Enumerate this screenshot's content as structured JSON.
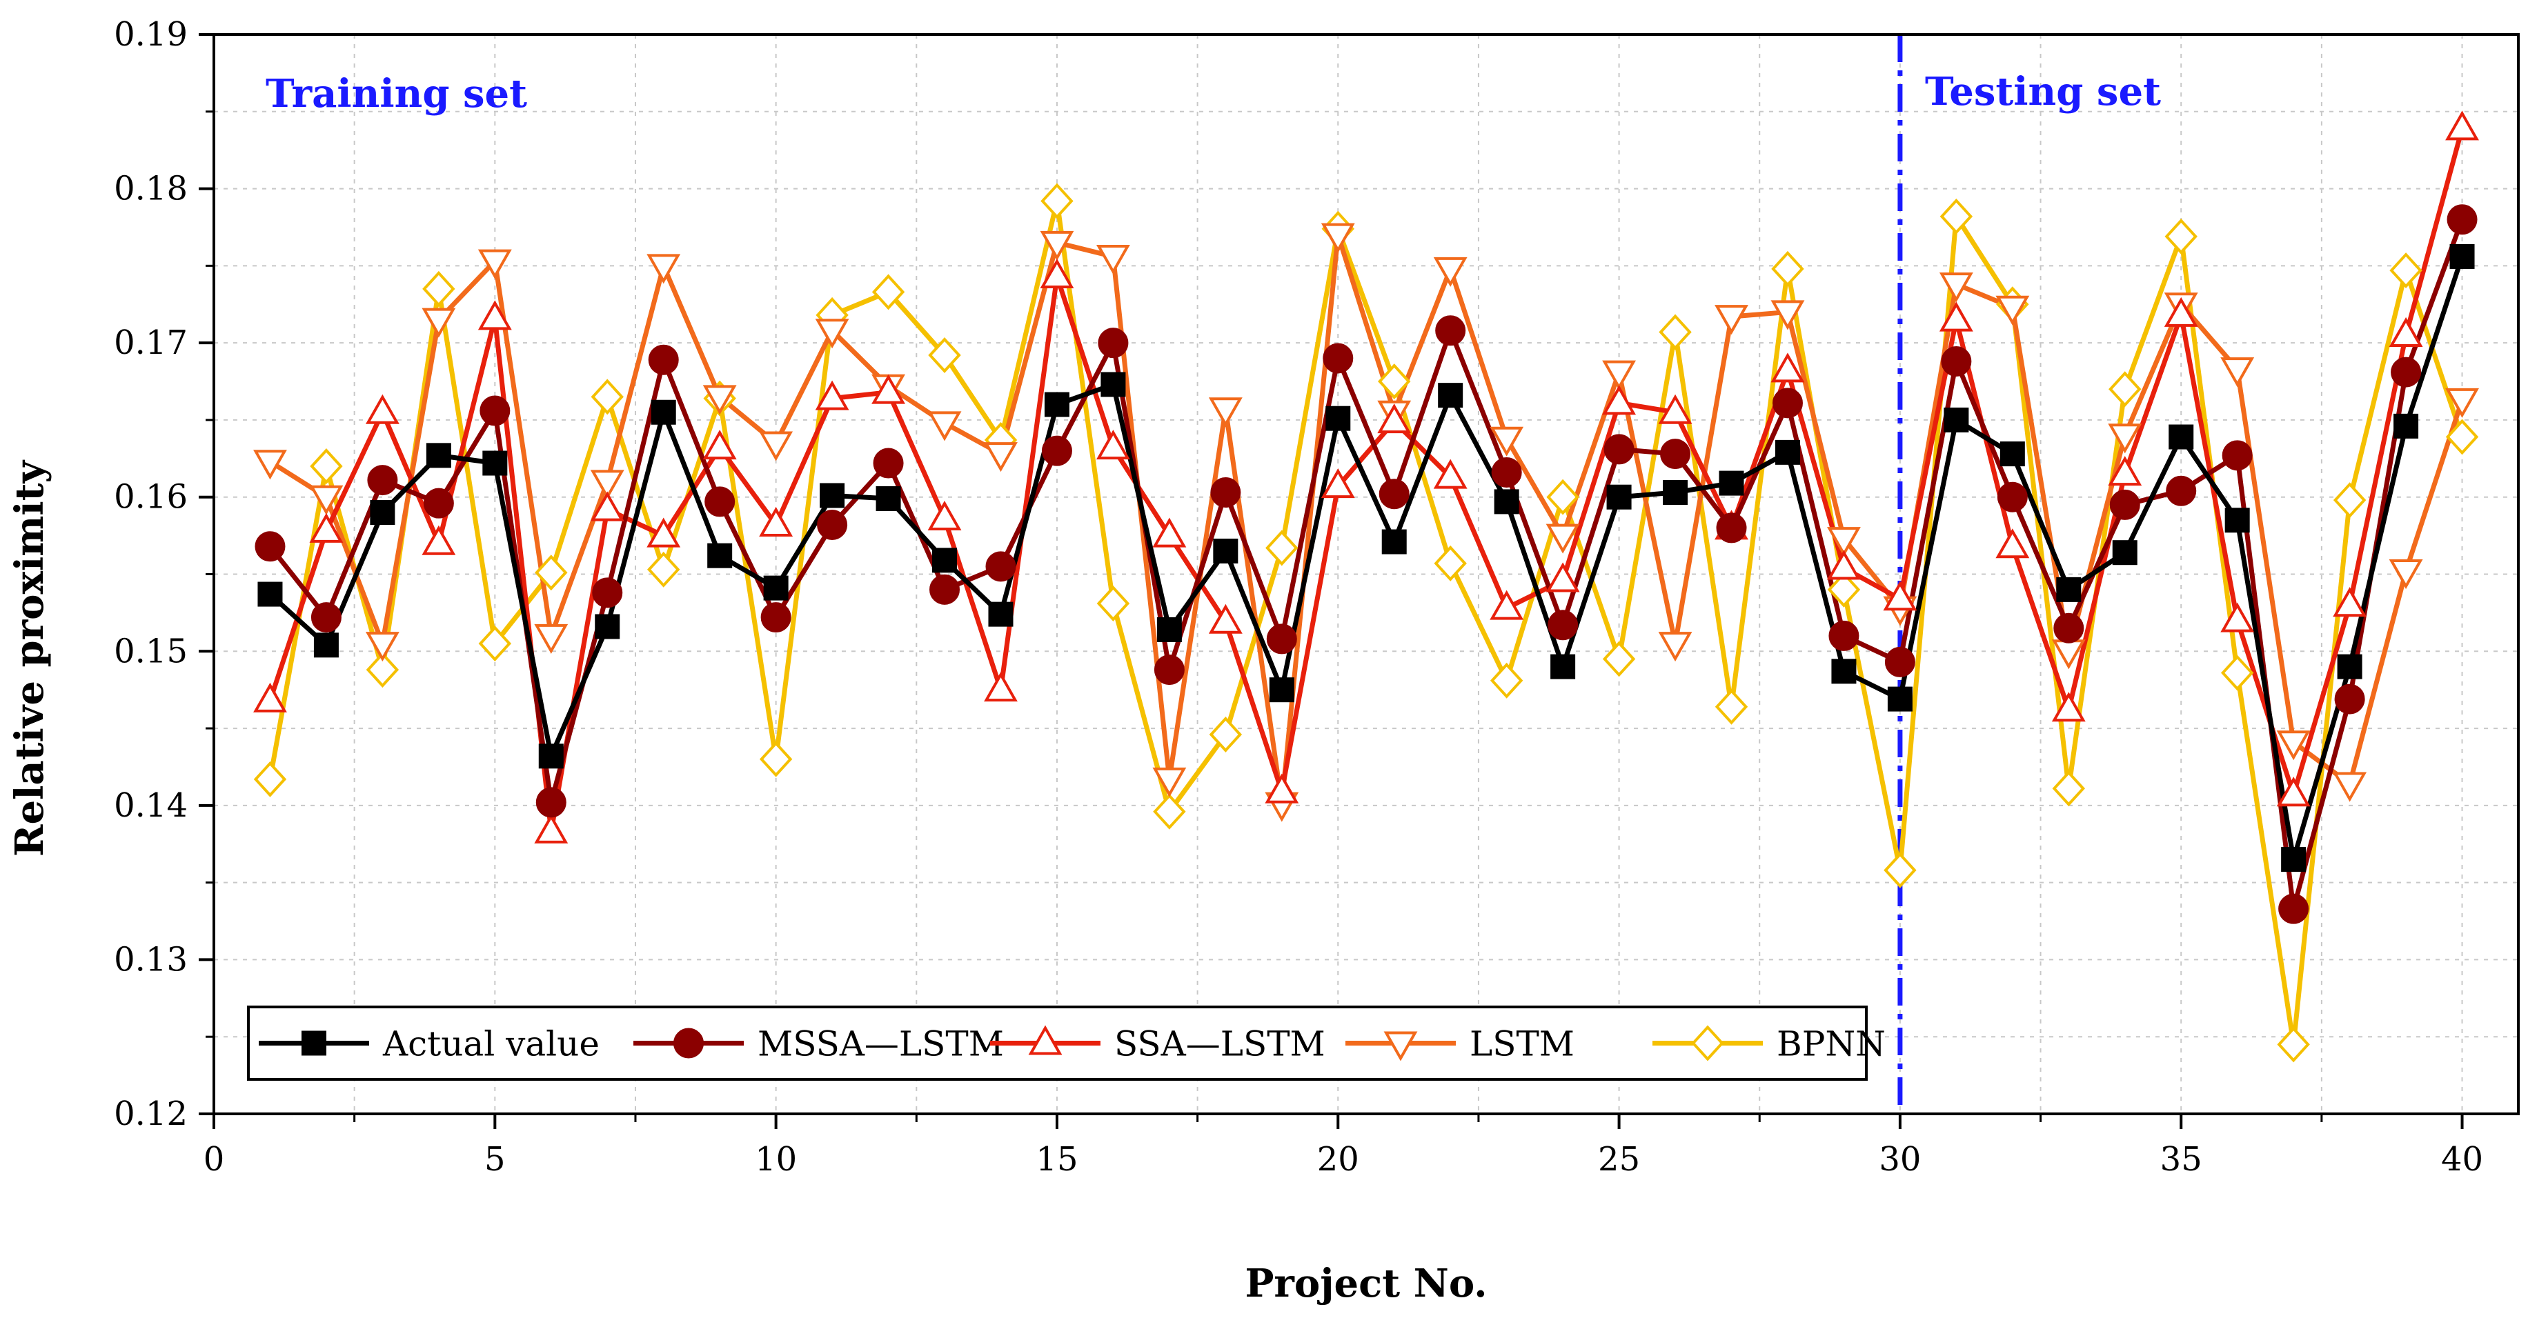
{
  "chart_data": {
    "type": "line",
    "xlabel": "Project No.",
    "ylabel": "Relative proximity",
    "xlim": [
      0,
      41
    ],
    "ylim": [
      0.12,
      0.19
    ],
    "xticks": [
      0,
      5,
      10,
      15,
      20,
      25,
      30,
      35,
      40
    ],
    "yticks": [
      0.12,
      0.13,
      0.14,
      0.15,
      0.16,
      0.17,
      0.18,
      0.19
    ],
    "grid": true,
    "legend_position": "bottom-left",
    "divider_x": 30,
    "annotations": {
      "training": "Training set",
      "testing": "Testing set"
    },
    "x": [
      1,
      2,
      3,
      4,
      5,
      6,
      7,
      8,
      9,
      10,
      11,
      12,
      13,
      14,
      15,
      16,
      17,
      18,
      19,
      20,
      21,
      22,
      23,
      24,
      25,
      26,
      27,
      28,
      29,
      30,
      31,
      32,
      33,
      34,
      35,
      36,
      37,
      38,
      39,
      40
    ],
    "series": [
      {
        "name": "Actual value",
        "color": "#000000",
        "marker": "square",
        "filled": true,
        "values": [
          0.1537,
          0.1504,
          0.159,
          0.1627,
          0.1622,
          0.1432,
          0.1516,
          0.1655,
          0.1562,
          0.1541,
          0.1601,
          0.1599,
          0.1559,
          0.1524,
          0.166,
          0.1673,
          0.1514,
          0.1565,
          0.1475,
          0.1651,
          0.1571,
          0.1666,
          0.1597,
          0.149,
          0.16,
          0.1603,
          0.1609,
          0.1629,
          0.1487,
          0.1469,
          0.165,
          0.1628,
          0.154,
          0.1564,
          0.1639,
          0.1585,
          0.1365,
          0.149,
          0.1646,
          0.1756
        ]
      },
      {
        "name": "MSSA—LSTM",
        "color": "#8b0000",
        "marker": "circle",
        "filled": true,
        "values": [
          0.1568,
          0.1522,
          0.1611,
          0.1596,
          0.1656,
          0.1402,
          0.1538,
          0.1689,
          0.1597,
          0.1522,
          0.1582,
          0.1622,
          0.154,
          0.1555,
          0.163,
          0.17,
          0.1488,
          0.1603,
          0.1508,
          0.169,
          0.1602,
          0.1708,
          0.1616,
          0.1517,
          0.1631,
          0.1628,
          0.158,
          0.1661,
          0.151,
          0.1493,
          0.1688,
          0.16,
          0.1515,
          0.1595,
          0.1604,
          0.1627,
          0.1333,
          0.1469,
          0.1681,
          0.178
        ]
      },
      {
        "name": "SSA—LSTM",
        "color": "#e8200c",
        "marker": "triangle-up",
        "filled": false,
        "values": [
          0.1468,
          0.1578,
          0.1655,
          0.157,
          0.1716,
          0.1383,
          0.1592,
          0.1575,
          0.1632,
          0.1582,
          0.1664,
          0.1668,
          0.1586,
          0.1475,
          0.1743,
          0.1632,
          0.1575,
          0.1519,
          0.1409,
          0.1607,
          0.1649,
          0.1613,
          0.1528,
          0.1546,
          0.1661,
          0.1655,
          0.158,
          0.1682,
          0.1554,
          0.1534,
          0.1715,
          0.1568,
          0.1462,
          0.1615,
          0.1718,
          0.152,
          0.1407,
          0.153,
          0.1705,
          0.1839
        ]
      },
      {
        "name": "LSTM",
        "color": "#f26a1b",
        "marker": "triangle-down",
        "filled": false,
        "values": [
          0.1623,
          0.16,
          0.1505,
          0.1715,
          0.1753,
          0.151,
          0.161,
          0.175,
          0.1665,
          0.1635,
          0.1708,
          0.1672,
          0.1648,
          0.1628,
          0.1765,
          0.1756,
          0.1417,
          0.1657,
          0.1401,
          0.177,
          0.1655,
          0.1748,
          0.1638,
          0.1575,
          0.1681,
          0.1505,
          0.1717,
          0.172,
          0.1573,
          0.1528,
          0.1738,
          0.1723,
          0.15,
          0.164,
          0.1725,
          0.1683,
          0.1441,
          0.1414,
          0.1552,
          0.1663
        ]
      },
      {
        "name": "BPNN",
        "color": "#f5c000",
        "marker": "diamond",
        "filled": false,
        "values": [
          0.1417,
          0.162,
          0.1488,
          0.1735,
          0.1505,
          0.1551,
          0.1665,
          0.1553,
          0.1664,
          0.143,
          0.1718,
          0.1733,
          0.1692,
          0.1637,
          0.1792,
          0.1531,
          0.1396,
          0.1446,
          0.1567,
          0.1774,
          0.1675,
          0.1557,
          0.1481,
          0.16,
          0.1495,
          0.1707,
          0.1464,
          0.1748,
          0.154,
          0.1358,
          0.1782,
          0.1725,
          0.1411,
          0.167,
          0.1769,
          0.1486,
          0.1245,
          0.1598,
          0.1747,
          0.1639
        ]
      }
    ]
  }
}
